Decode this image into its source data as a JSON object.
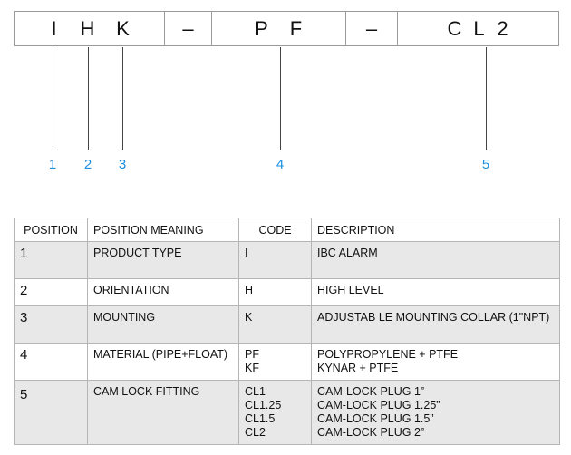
{
  "code_bar": {
    "segments": [
      {
        "letters": [
          "I",
          "H",
          "K"
        ]
      },
      {
        "letters": [
          "–"
        ]
      },
      {
        "letters": [
          "P",
          "F"
        ]
      },
      {
        "letters": [
          "–"
        ]
      },
      {
        "letters": [
          "C",
          "L",
          "2"
        ]
      }
    ]
  },
  "callouts": [
    "1",
    "2",
    "3",
    "4",
    "5"
  ],
  "table": {
    "headers": {
      "position": "POSITION",
      "meaning": "POSITION MEANING",
      "code": "CODE",
      "description": "DESCRIPTION"
    },
    "rows": [
      {
        "position": "1",
        "meaning": "PRODUCT TYPE",
        "codes": [
          "I"
        ],
        "descriptions": [
          "IBC ALARM"
        ]
      },
      {
        "position": "2",
        "meaning": "ORIENTATION",
        "codes": [
          "H"
        ],
        "descriptions": [
          "HIGH LEVEL"
        ]
      },
      {
        "position": "3",
        "meaning": "MOUNTING",
        "codes": [
          "K"
        ],
        "descriptions": [
          "ADJUSTAB LE MOUNTING COLLAR (1\"NPT)"
        ]
      },
      {
        "position": "4",
        "meaning": "MATERIAL (PIPE+FLOAT)",
        "codes": [
          "PF",
          "KF"
        ],
        "descriptions": [
          "POLYPROPYLENE + PTFE",
          "KYNAR + PTFE"
        ]
      },
      {
        "position": "5",
        "meaning": "CAM LOCK FITTING",
        "codes": [
          "CL1",
          "CL1.25",
          "CL1.5",
          "CL2"
        ],
        "descriptions": [
          "CAM-LOCK PLUG 1”",
          "CAM-LOCK PLUG 1.25”",
          "CAM-LOCK PLUG 1.5”",
          "CAM-LOCK PLUG 2”"
        ]
      }
    ]
  },
  "colors": {
    "callout_blue": "#1a8fe3",
    "row_shade": "#e8e8e8",
    "border": "#9a9a9a"
  }
}
